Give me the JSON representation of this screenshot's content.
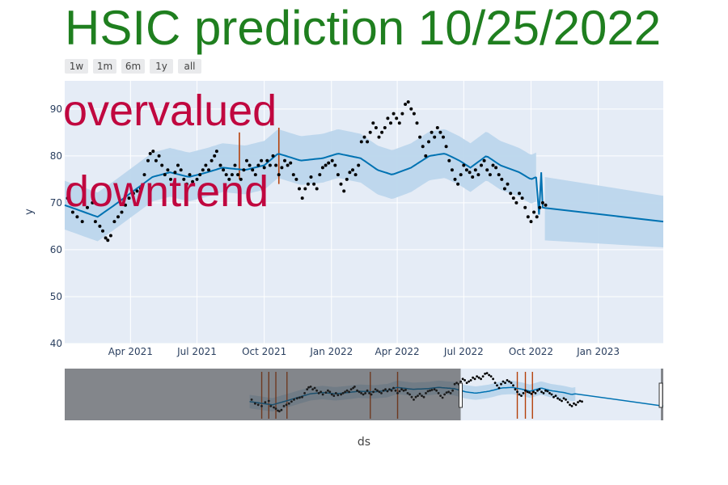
{
  "title": "HSIC prediction 10/25/2022",
  "range_buttons": [
    "1w",
    "1m",
    "6m",
    "1y",
    "all"
  ],
  "annotations": [
    "overvalued",
    "downtrend"
  ],
  "colors": {
    "title": "#1f7f1f",
    "annotation": "#c0073f",
    "forecast": "#0072B2",
    "band": "#bcd6ec",
    "points": "#000000",
    "changepoint": "#b5400a",
    "plot_bg": "#e5ecf6"
  },
  "chart_data": {
    "type": "scatter",
    "title": "HSIC prediction 10/25/2022",
    "xlabel": "ds",
    "ylabel": "y",
    "ylim": [
      40,
      96
    ],
    "xlim": [
      "2021-01-01",
      "2023-03-31"
    ],
    "yticks": [
      40,
      50,
      60,
      70,
      80,
      90
    ],
    "xticks": [
      {
        "date": "2021-04-01",
        "label": "Apr 2021"
      },
      {
        "date": "2021-07-01",
        "label": "Jul 2021"
      },
      {
        "date": "2021-10-01",
        "label": "Oct 2021"
      },
      {
        "date": "2022-01-01",
        "label": "Jan 2022"
      },
      {
        "date": "2022-04-01",
        "label": "Apr 2022"
      },
      {
        "date": "2022-07-01",
        "label": "Jul 2022"
      },
      {
        "date": "2022-10-01",
        "label": "Oct 2022"
      },
      {
        "date": "2023-01-01",
        "label": "Jan 2023"
      }
    ],
    "grid": true,
    "changepoints": [
      {
        "date": "2021-08-28",
        "ymin": 75,
        "ymax": 85
      },
      {
        "date": "2021-10-21",
        "ymin": 74,
        "ymax": 86
      }
    ],
    "forecast_anchors": [
      [
        "2021-01-01",
        69.5
      ],
      [
        "2021-02-15",
        67
      ],
      [
        "2021-03-10",
        69.5
      ],
      [
        "2021-04-05",
        72.5
      ],
      [
        "2021-05-01",
        75.5
      ],
      [
        "2021-05-25",
        76.5
      ],
      [
        "2021-06-20",
        75.5
      ],
      [
        "2021-07-15",
        76.5
      ],
      [
        "2021-08-05",
        77.5
      ],
      [
        "2021-09-05",
        77
      ],
      [
        "2021-10-01",
        78
      ],
      [
        "2021-10-20",
        80.5
      ],
      [
        "2021-11-20",
        79
      ],
      [
        "2021-12-20",
        79.5
      ],
      [
        "2022-01-10",
        80.5
      ],
      [
        "2022-02-10",
        79.5
      ],
      [
        "2022-03-05",
        77
      ],
      [
        "2022-03-25",
        76
      ],
      [
        "2022-04-20",
        77.5
      ],
      [
        "2022-05-15",
        80
      ],
      [
        "2022-06-05",
        80.5
      ],
      [
        "2022-06-25",
        79
      ],
      [
        "2022-07-10",
        77.5
      ],
      [
        "2022-08-01",
        80
      ],
      [
        "2022-08-20",
        78
      ],
      [
        "2022-09-15",
        76.5
      ],
      [
        "2022-10-01",
        75
      ],
      [
        "2022-10-08",
        75.5
      ]
    ],
    "future_segment": [
      [
        "2022-10-20",
        68.9
      ],
      [
        "2023-03-31",
        66
      ]
    ],
    "future_band": {
      "upper": [
        [
          "2022-10-20",
          75.5
        ],
        [
          "2023-03-31",
          71.5
        ]
      ],
      "lower": [
        [
          "2022-10-20",
          62
        ],
        [
          "2023-03-31",
          60.5
        ]
      ]
    },
    "band_halfwidth": 5.2,
    "actual_points": [
      [
        "2021-01-05",
        71
      ],
      [
        "2021-01-12",
        68
      ],
      [
        "2021-01-18",
        67
      ],
      [
        "2021-01-25",
        66
      ],
      [
        "2021-02-01",
        69
      ],
      [
        "2021-02-08",
        70
      ],
      [
        "2021-02-12",
        66
      ],
      [
        "2021-02-18",
        65
      ],
      [
        "2021-02-22",
        64
      ],
      [
        "2021-02-26",
        62.5
      ],
      [
        "2021-03-01",
        62
      ],
      [
        "2021-03-05",
        63
      ],
      [
        "2021-03-10",
        66
      ],
      [
        "2021-03-15",
        67
      ],
      [
        "2021-03-20",
        68
      ],
      [
        "2021-03-25",
        69.5
      ],
      [
        "2021-03-30",
        71
      ],
      [
        "2021-04-05",
        72
      ],
      [
        "2021-04-10",
        72.5
      ],
      [
        "2021-04-15",
        73
      ],
      [
        "2021-04-20",
        76
      ],
      [
        "2021-04-25",
        79
      ],
      [
        "2021-04-28",
        80.5
      ],
      [
        "2021-05-02",
        81
      ],
      [
        "2021-05-06",
        79
      ],
      [
        "2021-05-10",
        80
      ],
      [
        "2021-05-14",
        78
      ],
      [
        "2021-05-18",
        76
      ],
      [
        "2021-05-22",
        77
      ],
      [
        "2021-05-26",
        75
      ],
      [
        "2021-06-01",
        76.5
      ],
      [
        "2021-06-05",
        78
      ],
      [
        "2021-06-09",
        77
      ],
      [
        "2021-06-13",
        75
      ],
      [
        "2021-06-17",
        74
      ],
      [
        "2021-06-21",
        76
      ],
      [
        "2021-06-25",
        74.5
      ],
      [
        "2021-07-01",
        75
      ],
      [
        "2021-07-05",
        76
      ],
      [
        "2021-07-09",
        77
      ],
      [
        "2021-07-13",
        78
      ],
      [
        "2021-07-17",
        77
      ],
      [
        "2021-07-21",
        79
      ],
      [
        "2021-07-25",
        80
      ],
      [
        "2021-07-28",
        81
      ],
      [
        "2021-08-02",
        78
      ],
      [
        "2021-08-06",
        77
      ],
      [
        "2021-08-10",
        76
      ],
      [
        "2021-08-14",
        75
      ],
      [
        "2021-08-18",
        76
      ],
      [
        "2021-08-22",
        78
      ],
      [
        "2021-08-26",
        76
      ],
      [
        "2021-08-30",
        75
      ],
      [
        "2021-09-03",
        77
      ],
      [
        "2021-09-07",
        79
      ],
      [
        "2021-09-11",
        78
      ],
      [
        "2021-09-15",
        77
      ],
      [
        "2021-09-19",
        76
      ],
      [
        "2021-09-23",
        78
      ],
      [
        "2021-09-27",
        79
      ],
      [
        "2021-10-01",
        77.5
      ],
      [
        "2021-10-05",
        79
      ],
      [
        "2021-10-09",
        78
      ],
      [
        "2021-10-13",
        80
      ],
      [
        "2021-10-17",
        78
      ],
      [
        "2021-10-21",
        76
      ],
      [
        "2021-10-25",
        77.5
      ],
      [
        "2021-10-29",
        79
      ],
      [
        "2021-11-02",
        78
      ],
      [
        "2021-11-06",
        78.5
      ],
      [
        "2021-11-10",
        76
      ],
      [
        "2021-11-14",
        75
      ],
      [
        "2021-11-18",
        73
      ],
      [
        "2021-11-22",
        71
      ],
      [
        "2021-11-26",
        73
      ],
      [
        "2021-11-30",
        74
      ],
      [
        "2021-12-04",
        75.5
      ],
      [
        "2021-12-08",
        74
      ],
      [
        "2021-12-12",
        73
      ],
      [
        "2021-12-16",
        76
      ],
      [
        "2021-12-20",
        77.5
      ],
      [
        "2021-12-24",
        78
      ],
      [
        "2021-12-28",
        78.5
      ],
      [
        "2022-01-02",
        79
      ],
      [
        "2022-01-06",
        78
      ],
      [
        "2022-01-10",
        76
      ],
      [
        "2022-01-14",
        74
      ],
      [
        "2022-01-18",
        72.5
      ],
      [
        "2022-01-22",
        75
      ],
      [
        "2022-01-26",
        76.5
      ],
      [
        "2022-01-30",
        77
      ],
      [
        "2022-02-03",
        76
      ],
      [
        "2022-02-07",
        78
      ],
      [
        "2022-02-11",
        83
      ],
      [
        "2022-02-15",
        84
      ],
      [
        "2022-02-19",
        83
      ],
      [
        "2022-02-23",
        85
      ],
      [
        "2022-02-27",
        87
      ],
      [
        "2022-03-03",
        86
      ],
      [
        "2022-03-07",
        84
      ],
      [
        "2022-03-11",
        85
      ],
      [
        "2022-03-15",
        86
      ],
      [
        "2022-03-19",
        88
      ],
      [
        "2022-03-23",
        87
      ],
      [
        "2022-03-27",
        89
      ],
      [
        "2022-03-31",
        88
      ],
      [
        "2022-04-04",
        87
      ],
      [
        "2022-04-08",
        89
      ],
      [
        "2022-04-12",
        91
      ],
      [
        "2022-04-16",
        91.5
      ],
      [
        "2022-04-20",
        90
      ],
      [
        "2022-04-24",
        89
      ],
      [
        "2022-04-28",
        87
      ],
      [
        "2022-05-02",
        84
      ],
      [
        "2022-05-06",
        82
      ],
      [
        "2022-05-10",
        80
      ],
      [
        "2022-05-14",
        83
      ],
      [
        "2022-05-18",
        85
      ],
      [
        "2022-05-22",
        84
      ],
      [
        "2022-05-26",
        86
      ],
      [
        "2022-05-30",
        85
      ],
      [
        "2022-06-03",
        84
      ],
      [
        "2022-06-07",
        82
      ],
      [
        "2022-06-11",
        79
      ],
      [
        "2022-06-15",
        77
      ],
      [
        "2022-06-19",
        75
      ],
      [
        "2022-06-23",
        74
      ],
      [
        "2022-06-27",
        76
      ],
      [
        "2022-07-01",
        78
      ],
      [
        "2022-07-05",
        77
      ],
      [
        "2022-07-09",
        76.5
      ],
      [
        "2022-07-13",
        75.5
      ],
      [
        "2022-07-17",
        77
      ],
      [
        "2022-07-21",
        76
      ],
      [
        "2022-07-25",
        78
      ],
      [
        "2022-07-29",
        79
      ],
      [
        "2022-08-02",
        77
      ],
      [
        "2022-08-06",
        76
      ],
      [
        "2022-08-10",
        78
      ],
      [
        "2022-08-14",
        77.5
      ],
      [
        "2022-08-18",
        76
      ],
      [
        "2022-08-22",
        75
      ],
      [
        "2022-08-26",
        73
      ],
      [
        "2022-08-30",
        74
      ],
      [
        "2022-09-03",
        72
      ],
      [
        "2022-09-07",
        71
      ],
      [
        "2022-09-11",
        70
      ],
      [
        "2022-09-15",
        72
      ],
      [
        "2022-09-19",
        71
      ],
      [
        "2022-09-23",
        69
      ],
      [
        "2022-09-27",
        67
      ],
      [
        "2022-10-01",
        66
      ],
      [
        "2022-10-05",
        68
      ],
      [
        "2022-10-09",
        67
      ],
      [
        "2022-10-13",
        69
      ],
      [
        "2022-10-17",
        70
      ],
      [
        "2022-10-21",
        69.5
      ]
    ]
  },
  "range_slider": {
    "window_start": "2022-01-25",
    "window_end": "2023-03-31",
    "changepoints": [
      "2021-01-25",
      "2021-02-08",
      "2021-02-22",
      "2021-03-16",
      "2021-08-28",
      "2021-10-21",
      "2022-06-15",
      "2022-07-01",
      "2022-07-15"
    ]
  }
}
